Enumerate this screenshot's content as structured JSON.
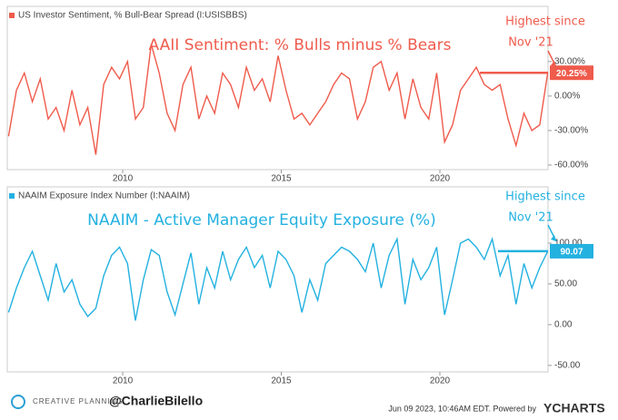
{
  "chart_data": [
    {
      "type": "line",
      "x": [
        2006.4,
        2006.65,
        2006.9,
        2007.15,
        2007.4,
        2007.65,
        2007.9,
        2008.15,
        2008.4,
        2008.65,
        2008.9,
        2009.15,
        2009.4,
        2009.65,
        2009.9,
        2010.15,
        2010.4,
        2010.65,
        2010.9,
        2011.15,
        2011.4,
        2011.65,
        2011.9,
        2012.15,
        2012.4,
        2012.65,
        2012.9,
        2013.15,
        2013.4,
        2013.65,
        2013.9,
        2014.15,
        2014.4,
        2014.65,
        2014.9,
        2015.15,
        2015.4,
        2015.65,
        2015.9,
        2016.15,
        2016.4,
        2016.65,
        2016.9,
        2017.15,
        2017.4,
        2017.65,
        2017.9,
        2018.15,
        2018.4,
        2018.65,
        2018.9,
        2019.15,
        2019.4,
        2019.65,
        2019.9,
        2020.15,
        2020.4,
        2020.65,
        2020.9,
        2021.15,
        2021.4,
        2021.65,
        2021.9,
        2022.15,
        2022.4,
        2022.65,
        2022.9,
        2023.15,
        2023.4
      ],
      "series": [
        {
          "name": "US Investor Sentiment, % Bull-Bear Spread (I:USISBBS)",
          "color": "#ef5b4c",
          "values": [
            -35,
            5,
            20,
            -5,
            15,
            -20,
            -10,
            -30,
            5,
            -25,
            -10,
            -51,
            10,
            25,
            15,
            30,
            -20,
            -10,
            45,
            20,
            -15,
            -30,
            10,
            25,
            -20,
            0,
            -15,
            20,
            10,
            -10,
            25,
            5,
            15,
            -5,
            35,
            5,
            -20,
            -15,
            -25,
            -15,
            -5,
            10,
            20,
            15,
            -20,
            -5,
            25,
            30,
            5,
            20,
            -20,
            15,
            -10,
            -20,
            20,
            -40,
            -25,
            5,
            15,
            25,
            10,
            5,
            10,
            -20,
            -43,
            -15,
            -30,
            -25,
            20.25
          ],
          "value_labels": [
            null,
            null,
            null,
            null,
            null,
            null,
            null,
            null,
            null,
            null,
            null,
            null,
            null,
            null,
            null,
            null,
            null,
            null,
            null,
            null,
            null,
            null,
            null,
            null,
            null,
            null,
            null,
            null,
            null,
            null,
            null,
            null,
            null,
            null,
            null,
            null,
            null,
            null,
            null,
            null,
            null,
            null,
            null,
            null,
            null,
            null,
            null,
            null,
            null,
            null,
            null,
            null,
            null,
            null,
            null,
            null,
            null,
            null,
            null,
            null,
            null,
            null,
            null,
            null,
            null,
            null,
            null,
            null,
            "20.25%"
          ]
        }
      ],
      "xlim": [
        2006.36,
        2023.41
      ],
      "xticks": [
        2010,
        2015,
        2020
      ],
      "ylim": [
        -64,
        78
      ],
      "yticks": [
        {
          "value": 30,
          "label": "30.00%"
        },
        {
          "value": 0,
          "label": "0.00%"
        },
        {
          "value": -30,
          "label": "-30.00%"
        },
        {
          "value": -60,
          "label": "-60.00%"
        }
      ],
      "annotations": [
        "AAII Sentiment: % Bulls minus % Bears",
        "Highest since",
        "Nov '21"
      ]
    },
    {
      "type": "line",
      "x": [
        2006.4,
        2006.65,
        2006.9,
        2007.15,
        2007.4,
        2007.65,
        2007.9,
        2008.15,
        2008.4,
        2008.65,
        2008.9,
        2009.15,
        2009.4,
        2009.65,
        2009.9,
        2010.15,
        2010.4,
        2010.65,
        2010.9,
        2011.15,
        2011.4,
        2011.65,
        2011.9,
        2012.15,
        2012.4,
        2012.65,
        2012.9,
        2013.15,
        2013.4,
        2013.65,
        2013.9,
        2014.15,
        2014.4,
        2014.65,
        2014.9,
        2015.15,
        2015.4,
        2015.65,
        2015.9,
        2016.15,
        2016.4,
        2016.65,
        2016.9,
        2017.15,
        2017.4,
        2017.65,
        2017.9,
        2018.15,
        2018.4,
        2018.65,
        2018.9,
        2019.15,
        2019.4,
        2019.65,
        2019.9,
        2020.15,
        2020.4,
        2020.65,
        2020.9,
        2021.15,
        2021.4,
        2021.65,
        2021.9,
        2022.15,
        2022.4,
        2022.65,
        2022.9,
        2023.15,
        2023.4
      ],
      "series": [
        {
          "name": "NAAIM Exposure Index Number (I:NAAIM)",
          "color": "#23b1e0",
          "values": [
            15,
            45,
            70,
            90,
            60,
            30,
            75,
            40,
            55,
            25,
            10,
            20,
            60,
            85,
            95,
            75,
            5,
            55,
            92,
            85,
            40,
            12,
            50,
            88,
            25,
            70,
            45,
            90,
            55,
            80,
            95,
            70,
            85,
            45,
            90,
            80,
            60,
            15,
            55,
            30,
            75,
            85,
            95,
            90,
            80,
            65,
            100,
            45,
            85,
            105,
            25,
            80,
            55,
            70,
            95,
            12,
            55,
            100,
            105,
            95,
            80,
            105,
            60,
            85,
            25,
            75,
            45,
            70,
            90.07
          ]
        }
      ],
      "xlim": [
        2006.36,
        2023.41
      ],
      "xticks": [
        2010,
        2015,
        2020
      ],
      "ylim": [
        -58,
        169
      ],
      "yticks": [
        {
          "value": 100,
          "label": "100.00"
        },
        {
          "value": 50,
          "label": "50.00"
        },
        {
          "value": 0,
          "label": "0.00"
        },
        {
          "value": -50,
          "label": "-50.00"
        }
      ],
      "annotations": [
        "NAAIM - Active Manager Equity Exposure (%)",
        "Highest since",
        "Nov '21"
      ]
    }
  ],
  "footer": {
    "brand": "CREATIVE PLANNING",
    "handle": "@CharlieBilello",
    "timestamp": "Jun 09 2023, 10:46AM EDT.  Powered by",
    "source": "YCHARTS"
  }
}
